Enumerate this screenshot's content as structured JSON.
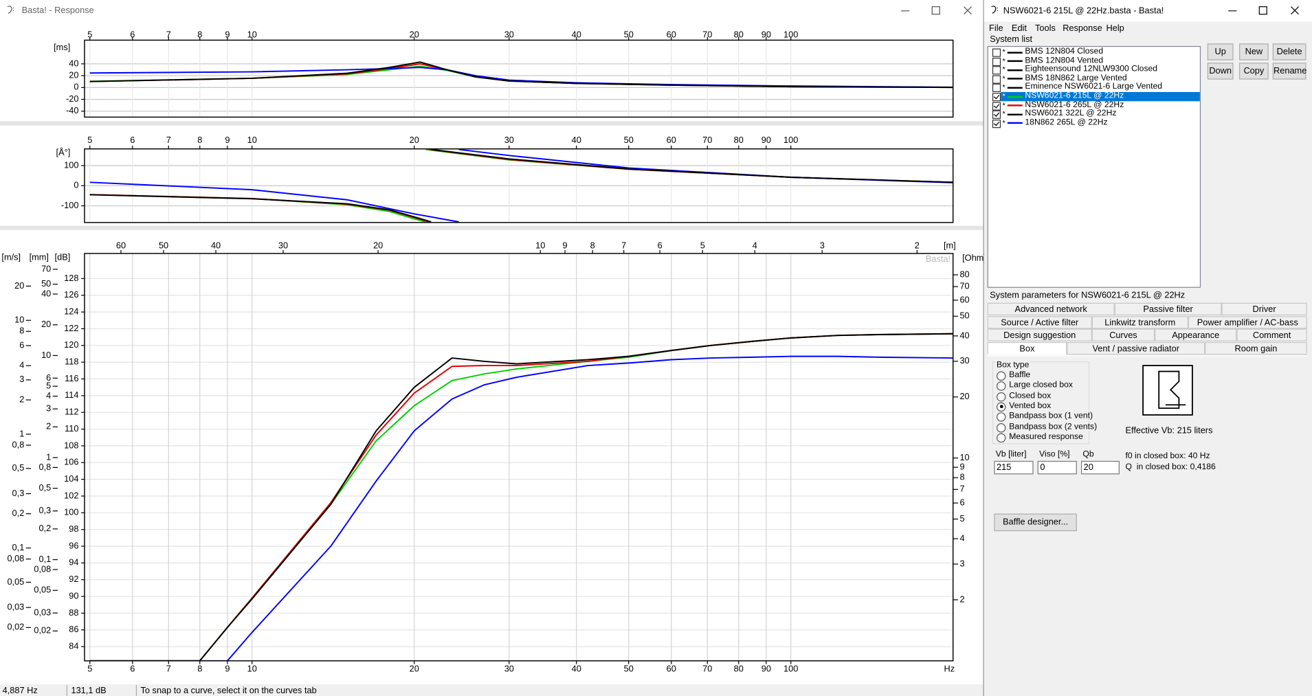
{
  "left_window": {
    "title": "Basta! - Response",
    "status_bar": [
      "4,887 Hz",
      "131,1 dB",
      "To snap to a curve, select it on the curves tab"
    ]
  },
  "chart_data": [
    {
      "type": "line",
      "y_label": "[ms]",
      "x": [
        5,
        10,
        15,
        18,
        20.5,
        23,
        26,
        30,
        40,
        60,
        100,
        200
      ],
      "xlim": [
        4.887,
        200
      ],
      "xticks": [
        5,
        6,
        7,
        8,
        9,
        10,
        20,
        30,
        40,
        50,
        60,
        70,
        80,
        90,
        100
      ],
      "ylim": [
        -50,
        80
      ],
      "yticks": [
        -40,
        -20,
        0,
        20,
        40
      ],
      "grid": true,
      "xlog": true,
      "series": [
        {
          "color": "#00d000",
          "values": [
            10.5,
            15.5,
            22,
            30,
            36,
            29,
            18,
            11,
            7,
            4,
            1.5,
            0.3
          ]
        },
        {
          "color": "#e00000",
          "values": [
            10,
            15.5,
            23,
            32,
            40,
            30,
            18,
            11,
            7,
            4,
            1.5,
            0.3
          ]
        },
        {
          "color": "#0000ff",
          "values": [
            24.5,
            26.5,
            30,
            32,
            34,
            30,
            20,
            12.5,
            8,
            5,
            2.5,
            0.5
          ]
        },
        {
          "color": "#000000",
          "values": [
            10,
            15.5,
            24,
            34,
            43,
            30,
            18,
            11,
            7,
            4,
            1.5,
            0.3
          ]
        }
      ]
    },
    {
      "type": "line",
      "y_label": "[Å°]",
      "xlim": [
        4.887,
        200
      ],
      "xticks": [
        5,
        6,
        7,
        8,
        9,
        10,
        20,
        30,
        40,
        50,
        60,
        70,
        80,
        90,
        100
      ],
      "ylim": [
        -183,
        183
      ],
      "yticks": [
        -100,
        0,
        100
      ],
      "grid": true,
      "xlog": true,
      "series": [
        {
          "color": "#00d000",
          "x": [
            5,
            10,
            15,
            18,
            20,
            21,
            21,
            21,
            30,
            50,
            100,
            200
          ],
          "values": [
            -44,
            -64,
            -95,
            -128,
            -165,
            -180,
            null,
            180,
            128,
            82,
            42,
            17
          ]
        },
        {
          "color": "#e00000",
          "x": [
            5,
            10,
            15,
            18,
            20,
            21.3,
            21.3,
            21.3,
            30,
            50,
            100,
            200
          ],
          "values": [
            -44,
            -64,
            -92,
            -122,
            -158,
            -180,
            null,
            180,
            130,
            82,
            42,
            17
          ]
        },
        {
          "color": "#0000ff",
          "x": [
            5,
            10,
            15,
            20,
            24.2,
            24.2,
            24.2,
            30,
            50,
            100,
            200
          ],
          "values": [
            17,
            -20,
            -70,
            -140,
            -180,
            null,
            180,
            150,
            88,
            42,
            15
          ]
        },
        {
          "color": "#000000",
          "x": [
            5,
            10,
            15,
            18,
            20,
            21.5,
            21.5,
            21.5,
            30,
            50,
            100,
            200
          ],
          "values": [
            -45,
            -65,
            -90,
            -120,
            -155,
            -180,
            null,
            180,
            133,
            83,
            42,
            17
          ]
        }
      ]
    },
    {
      "type": "line",
      "y_label": "[dB]",
      "x_unit": "Hz",
      "watermark": "Basta!",
      "x": [
        5,
        8,
        9,
        10,
        14,
        17,
        20,
        23.5,
        27,
        31,
        42,
        50,
        60,
        71,
        85,
        100,
        122,
        145,
        200
      ],
      "xlim": [
        4.887,
        200
      ],
      "xticks": [
        5,
        6,
        7,
        8,
        9,
        10,
        20,
        30,
        40,
        50,
        60,
        70,
        80,
        90,
        100
      ],
      "ylim": [
        82.3,
        131
      ],
      "yticks": [
        84,
        86,
        88,
        90,
        92,
        94,
        96,
        98,
        100,
        102,
        104,
        106,
        108,
        110,
        112,
        114,
        116,
        118,
        120,
        122,
        124,
        126,
        128
      ],
      "grid": true,
      "xlog": true,
      "top_axis": {
        "label": "[m]",
        "lim": [
          70.1,
          1.715
        ],
        "ticks": [
          60,
          50,
          40,
          30,
          20,
          10,
          9,
          8,
          7,
          6,
          5,
          4,
          3,
          2
        ]
      },
      "left_axes": [
        {
          "label": "[m/s]",
          "lim": [
            0.0102,
            38.7
          ],
          "ticks": [
            20,
            10,
            8,
            6,
            4,
            3,
            2,
            1,
            {
              "value": 0.8,
              "label": "0,8"
            },
            {
              "value": 0.5,
              "label": "0,5"
            },
            {
              "value": 0.3,
              "label": "0,3"
            },
            {
              "value": 0.2,
              "label": "0,2"
            },
            {
              "value": 0.1,
              "label": "0,1"
            },
            {
              "value": 0.08,
              "label": "0,08"
            },
            {
              "value": 0.05,
              "label": "0,05"
            },
            {
              "value": 0.03,
              "label": "0,03"
            },
            {
              "value": 0.02,
              "label": "0,02"
            }
          ]
        },
        {
          "label": "[mm]",
          "lim": [
            0.0102,
            100
          ],
          "ticks": [
            70,
            50,
            40,
            20,
            10,
            6,
            5,
            4,
            3,
            2,
            1,
            {
              "value": 0.8,
              "label": "0,8"
            },
            {
              "value": 0.5,
              "label": "0,5"
            },
            {
              "value": 0.3,
              "label": "0,3"
            },
            {
              "value": 0.2,
              "label": "0,2"
            },
            {
              "value": 0.1,
              "label": "0,1"
            },
            {
              "value": 0.08,
              "label": "0,08"
            },
            {
              "value": 0.05,
              "label": "0,05"
            },
            {
              "value": 0.03,
              "label": "0,03"
            },
            {
              "value": 0.02,
              "label": "0,02"
            }
          ]
        }
      ],
      "y2_label": "[Ohm]",
      "y2lim": [
        1,
        102
      ],
      "y2log": true,
      "y2ticks": [
        80,
        70,
        60,
        50,
        40,
        30,
        20,
        10,
        9,
        8,
        7,
        6,
        5,
        4,
        3,
        2
      ],
      "series": [
        {
          "color": "#00d000",
          "values": [
            82.3,
            82.3,
            86.3,
            89.8,
            101,
            108.6,
            112.8,
            115.8,
            116.6,
            117.2,
            118.1,
            118.6,
            119.4,
            120,
            120.5,
            120.9,
            121.2,
            121.3,
            121.4
          ]
        },
        {
          "color": "#e00000",
          "values": [
            82.3,
            82.3,
            86.3,
            89.8,
            101.2,
            109.3,
            114.3,
            117.5,
            117.6,
            117.6,
            118.1,
            118.7,
            119.4,
            120,
            120.5,
            120.9,
            121.2,
            121.3,
            121.4
          ]
        },
        {
          "color": "#0000ff",
          "values": [
            82.3,
            82.3,
            82.3,
            85.7,
            96,
            103.8,
            109.8,
            113.6,
            115.3,
            116.2,
            117.6,
            117.9,
            118.3,
            118.5,
            118.6,
            118.7,
            118.7,
            118.6,
            118.5
          ]
        },
        {
          "color": "#000000",
          "values": [
            82.3,
            82.3,
            86.3,
            89.7,
            101,
            109.8,
            115,
            118.5,
            118.1,
            117.8,
            118.3,
            118.7,
            119.4,
            120,
            120.5,
            120.9,
            121.2,
            121.3,
            121.4
          ]
        }
      ]
    }
  ],
  "right_window": {
    "title": "NSW6021-6 215L @ 22Hz.basta - Basta!",
    "menu": [
      "File",
      "Edit",
      "Tools",
      "Response",
      "Help"
    ],
    "system_list": {
      "label": "System list",
      "modified_mark": "*",
      "selected": 5,
      "items": [
        {
          "name": "BMS 12N804 Closed",
          "checked": false,
          "color": "#000000"
        },
        {
          "name": "BMS 12N804 Vented",
          "checked": false,
          "color": "#000000"
        },
        {
          "name": "Eighteensound 12NLW9300 Closed",
          "checked": false,
          "color": "#000000"
        },
        {
          "name": "BMS 18N862 Large Vented",
          "checked": false,
          "color": "#000000"
        },
        {
          "name": "Eminence NSW6021-6 Large Vented",
          "checked": false,
          "color": "#000000"
        },
        {
          "name": "NSW6021-6 215L @ 22Hz",
          "checked": true,
          "color": "#00d000"
        },
        {
          "name": "NSW6021-6 265L @ 22Hz",
          "checked": true,
          "color": "#e00000"
        },
        {
          "name": "NSW6021 322L @ 22Hz",
          "checked": true,
          "color": "#000000"
        },
        {
          "name": "18N862 265L @ 22Hz",
          "checked": true,
          "color": "#0000ff"
        }
      ]
    },
    "buttons": [
      "Up",
      "New",
      "Delete",
      "Down",
      "Copy",
      "Rename"
    ],
    "parameters_label": "System parameters for NSW6021-6 215L @ 22Hz",
    "tabs": [
      [
        "Advanced network",
        "Passive filter",
        "Driver"
      ],
      [
        "Source / Active filter",
        "Linkwitz transform",
        "Power amplifier / AC-bass"
      ],
      [
        "Design suggestion",
        "Curves",
        "Appearance",
        "Comment"
      ],
      [
        "Box",
        "Vent / passive radiator",
        "Room gain"
      ]
    ],
    "box_type": {
      "label": "Box type",
      "selected": 3,
      "options": [
        "Baffle",
        "Large closed box",
        "Closed box",
        "Vented box",
        "Bandpass box (1 vent)",
        "Bandpass box (2 vents)",
        "Measured response"
      ]
    },
    "effective_vb": "Effective Vb: 215 liters",
    "fields": [
      {
        "label": "Vb [liter]",
        "value": "215"
      },
      {
        "label": "Viso [%]",
        "value": "0"
      },
      {
        "label": "Qb",
        "value": "20"
      }
    ],
    "closed_box": [
      "f0 in closed box: 40 Hz",
      "Q  in closed box: 0,4186"
    ],
    "baffle_button": "Baffle designer..."
  }
}
